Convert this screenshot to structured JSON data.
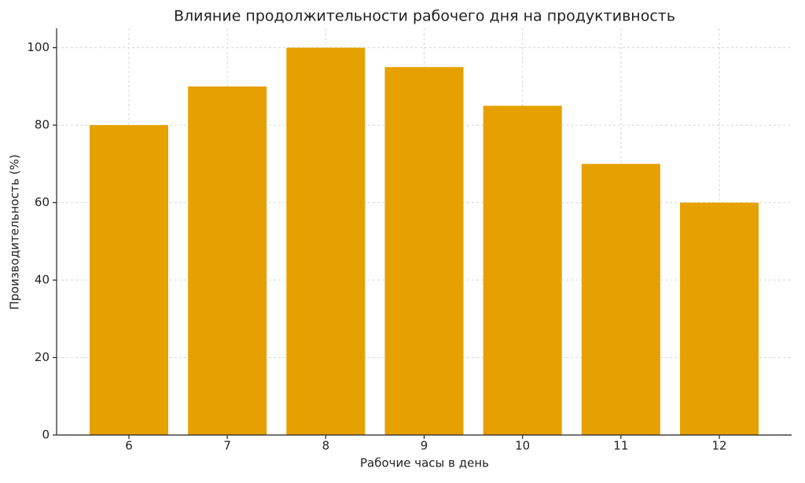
{
  "chart_data": {
    "type": "bar",
    "title": "Влияние продолжительности рабочего дня на продуктивность",
    "x_label": "Рабочие часы в день",
    "y_label": "Производительность (%)",
    "categories": [
      "6",
      "7",
      "8",
      "9",
      "10",
      "11",
      "12"
    ],
    "values": [
      80,
      90,
      100,
      95,
      85,
      70,
      60
    ],
    "color": "#e6a000",
    "ylim": [
      0,
      105
    ],
    "yticks": [
      0,
      20,
      40,
      60,
      80,
      100
    ],
    "grid": true
  }
}
